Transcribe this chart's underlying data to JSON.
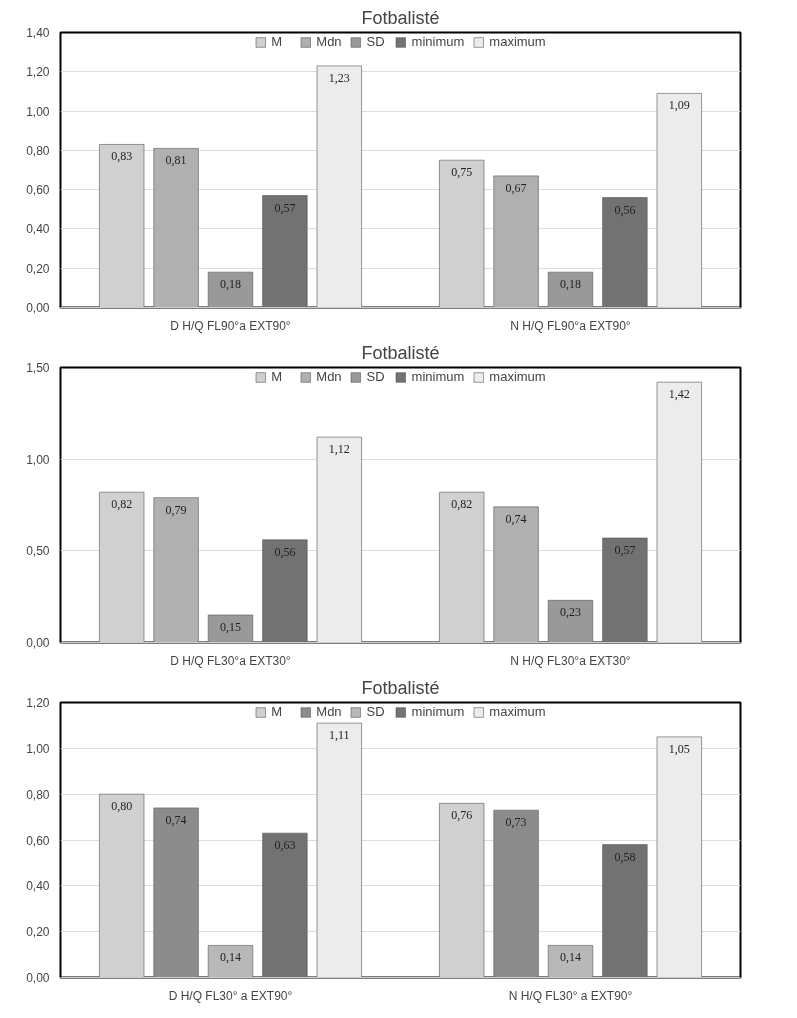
{
  "chart_data": [
    {
      "type": "bar",
      "title": "Fotbalisté",
      "categories": [
        "D H/Q FL90°a EXT90°",
        "N H/Q FL90°a EXT90°"
      ],
      "ylim": [
        0,
        1.4
      ],
      "yticks": [
        {
          "value": 0,
          "label": "0,00"
        },
        {
          "value": 0.2,
          "label": "0,20"
        },
        {
          "value": 0.4,
          "label": "0,40"
        },
        {
          "value": 0.6,
          "label": "0,60"
        },
        {
          "value": 0.8,
          "label": "0,80"
        },
        {
          "value": 1.0,
          "label": "1,00"
        },
        {
          "value": 1.2,
          "label": "1,20"
        },
        {
          "value": 1.4,
          "label": "1,40"
        }
      ],
      "grid": "y",
      "legend": "top",
      "series": [
        {
          "name": "M",
          "color": "#d0d0d0",
          "values": [
            0.83,
            0.75
          ],
          "value_labels": [
            "0,83",
            "0,75"
          ]
        },
        {
          "name": "Mdn",
          "color": "#b0b0b0",
          "values": [
            0.81,
            0.67
          ],
          "value_labels": [
            "0,81",
            "0,67"
          ]
        },
        {
          "name": "SD",
          "color": "#999999",
          "values": [
            0.18,
            0.18
          ],
          "value_labels": [
            "0,18",
            "0,18"
          ]
        },
        {
          "name": "minimum",
          "color": "#727272",
          "values": [
            0.57,
            0.56
          ],
          "value_labels": [
            "0,57",
            "0,56"
          ]
        },
        {
          "name": "maximum",
          "color": "#ececec",
          "values": [
            1.23,
            1.09
          ],
          "value_labels": [
            "1,23",
            "1,09"
          ]
        }
      ]
    },
    {
      "type": "bar",
      "title": "Fotbalisté",
      "categories": [
        "D H/Q FL30°a EXT30°",
        "N H/Q FL30°a EXT30°"
      ],
      "ylim": [
        0,
        1.5
      ],
      "yticks": [
        {
          "value": 0,
          "label": "0,00"
        },
        {
          "value": 0.5,
          "label": "0,50"
        },
        {
          "value": 1.0,
          "label": "1,00"
        },
        {
          "value": 1.5,
          "label": "1,50"
        }
      ],
      "grid": "y",
      "legend": "top",
      "series": [
        {
          "name": "M",
          "color": "#d0d0d0",
          "values": [
            0.82,
            0.82
          ],
          "value_labels": [
            "0,82",
            "0,82"
          ]
        },
        {
          "name": "Mdn",
          "color": "#b0b0b0",
          "values": [
            0.79,
            0.74
          ],
          "value_labels": [
            "0,79",
            "0,74"
          ]
        },
        {
          "name": "SD",
          "color": "#999999",
          "values": [
            0.15,
            0.23
          ],
          "value_labels": [
            "0,15",
            "0,23"
          ]
        },
        {
          "name": "minimum",
          "color": "#727272",
          "values": [
            0.56,
            0.57
          ],
          "value_labels": [
            "0,56",
            "0,57"
          ]
        },
        {
          "name": "maximum",
          "color": "#ececec",
          "values": [
            1.12,
            1.42
          ],
          "value_labels": [
            "1,12",
            "1,42"
          ]
        }
      ]
    },
    {
      "type": "bar",
      "title": "Fotbalisté",
      "categories": [
        "D H/Q FL30° a EXT90°",
        "N H/Q FL30° a EXT90°"
      ],
      "ylim": [
        0,
        1.2
      ],
      "yticks": [
        {
          "value": 0,
          "label": "0,00"
        },
        {
          "value": 0.2,
          "label": "0,20"
        },
        {
          "value": 0.4,
          "label": "0,40"
        },
        {
          "value": 0.6,
          "label": "0,60"
        },
        {
          "value": 0.8,
          "label": "0,80"
        },
        {
          "value": 1.0,
          "label": "1,00"
        },
        {
          "value": 1.2,
          "label": "1,20"
        }
      ],
      "grid": "y",
      "legend": "top",
      "series": [
        {
          "name": "M",
          "color": "#d0d0d0",
          "values": [
            0.8,
            0.76
          ],
          "value_labels": [
            "0,80",
            "0,76"
          ]
        },
        {
          "name": "Mdn",
          "color": "#8c8c8c",
          "values": [
            0.74,
            0.73
          ],
          "value_labels": [
            "0,74",
            "0,73"
          ]
        },
        {
          "name": "SD",
          "color": "#b8b8b8",
          "values": [
            0.14,
            0.14
          ],
          "value_labels": [
            "0,14",
            "0,14"
          ]
        },
        {
          "name": "minimum",
          "color": "#727272",
          "values": [
            0.63,
            0.58
          ],
          "value_labels": [
            "0,63",
            "0,58"
          ]
        },
        {
          "name": "maximum",
          "color": "#ececec",
          "values": [
            1.11,
            1.05
          ],
          "value_labels": [
            "1,11",
            "1,05"
          ]
        }
      ]
    }
  ]
}
